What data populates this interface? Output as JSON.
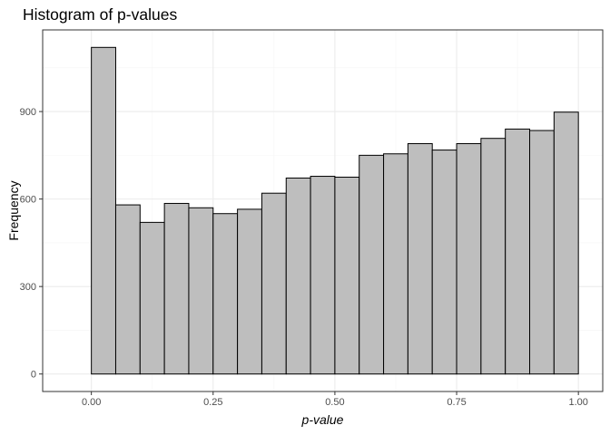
{
  "chart_data": {
    "type": "bar",
    "title": "Histogram of p-values",
    "xlabel": "p-value",
    "ylabel": "Frequency",
    "bin_width": 0.05,
    "bins": [
      {
        "x0": 0.0,
        "x1": 0.05,
        "value": 1120
      },
      {
        "x0": 0.05,
        "x1": 0.1,
        "value": 580
      },
      {
        "x0": 0.1,
        "x1": 0.15,
        "value": 520
      },
      {
        "x0": 0.15,
        "x1": 0.2,
        "value": 585
      },
      {
        "x0": 0.2,
        "x1": 0.25,
        "value": 570
      },
      {
        "x0": 0.25,
        "x1": 0.3,
        "value": 550
      },
      {
        "x0": 0.3,
        "x1": 0.35,
        "value": 565
      },
      {
        "x0": 0.35,
        "x1": 0.4,
        "value": 620
      },
      {
        "x0": 0.4,
        "x1": 0.45,
        "value": 672
      },
      {
        "x0": 0.45,
        "x1": 0.5,
        "value": 678
      },
      {
        "x0": 0.5,
        "x1": 0.55,
        "value": 675
      },
      {
        "x0": 0.55,
        "x1": 0.6,
        "value": 750
      },
      {
        "x0": 0.6,
        "x1": 0.65,
        "value": 755
      },
      {
        "x0": 0.65,
        "x1": 0.7,
        "value": 790
      },
      {
        "x0": 0.7,
        "x1": 0.75,
        "value": 768
      },
      {
        "x0": 0.75,
        "x1": 0.8,
        "value": 790
      },
      {
        "x0": 0.8,
        "x1": 0.85,
        "value": 808
      },
      {
        "x0": 0.85,
        "x1": 0.9,
        "value": 840
      },
      {
        "x0": 0.9,
        "x1": 0.95,
        "value": 835
      },
      {
        "x0": 0.95,
        "x1": 1.0,
        "value": 898
      }
    ],
    "x_ticks": [
      0.0,
      0.25,
      0.5,
      0.75,
      1.0
    ],
    "x_tick_labels": [
      "0.00",
      "0.25",
      "0.50",
      "0.75",
      "1.00"
    ],
    "y_ticks": [
      0,
      300,
      600,
      900
    ],
    "y_tick_labels": [
      "0",
      "300",
      "600",
      "900"
    ],
    "xlim": [
      -0.1,
      1.05
    ],
    "ylim": [
      -60,
      1180
    ],
    "grid": true,
    "colors": {
      "bar_fill": "#bebebe",
      "bar_stroke": "#000000",
      "grid_major": "#ebebeb",
      "grid_minor": "#f5f5f5",
      "panel_border": "#333333",
      "tick_text": "#4d4d4d",
      "title_text": "#000000"
    }
  }
}
